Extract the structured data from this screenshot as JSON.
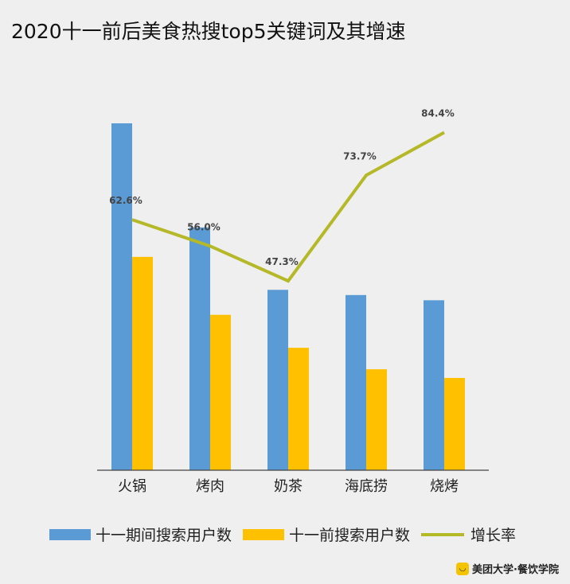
{
  "chart_data": {
    "type": "bar",
    "title": "2020十一前后美食热搜top5关键词及其增速",
    "categories": [
      "火锅",
      "烤肉",
      "奶茶",
      "海底捞",
      "烧烤"
    ],
    "series": [
      {
        "name": "十一期间搜索用户数",
        "kind": "bar",
        "color": "#5b9bd5",
        "values": [
          100,
          70,
          52,
          50.5,
          49
        ]
      },
      {
        "name": "十一前搜索用户数",
        "kind": "bar",
        "color": "#ffc000",
        "values": [
          61.5,
          44.8,
          35.3,
          29.1,
          26.6
        ]
      },
      {
        "name": "增长率",
        "kind": "line",
        "color": "#b5b827",
        "values": [
          62.6,
          56.0,
          47.3,
          73.7,
          84.4
        ],
        "labels": [
          "62.6%",
          "56.0%",
          "47.3%",
          "73.7%",
          "84.4%"
        ]
      }
    ],
    "ylim": [
      0,
      100
    ],
    "rate_ylim": [
      0,
      100
    ],
    "xlabel": "",
    "ylabel": "",
    "legend": "bottom"
  },
  "brand": {
    "logo_glyph": "◡",
    "text": "美团大学·餐饮学院"
  }
}
